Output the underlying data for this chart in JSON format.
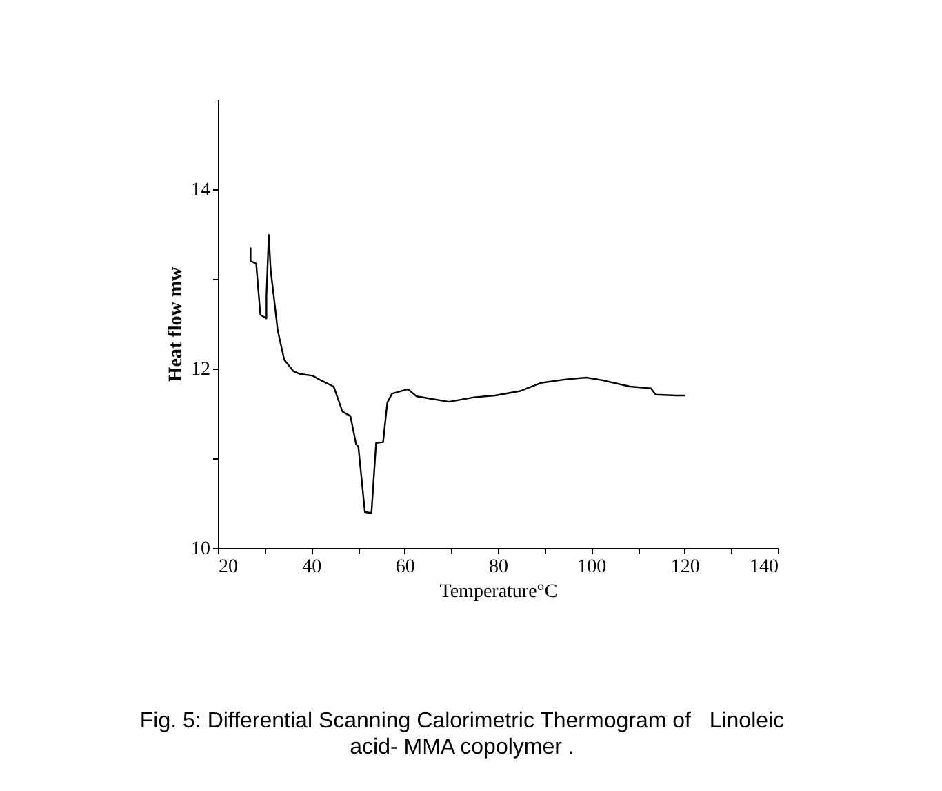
{
  "chart_data": {
    "type": "line",
    "xlabel": "Temperature°C",
    "ylabel": "Heat flow mw",
    "annotations": [
      "Fig. 5: Differential Scanning Calorimetric Thermogram of   Linoleic acid- MMA copolymer ."
    ],
    "xlim": [
      20,
      140
    ],
    "xticks": [
      20,
      {
        "value": 30,
        "label": null
      },
      40,
      {
        "value": 50,
        "label": null
      },
      60,
      {
        "value": 70,
        "label": null
      },
      80,
      {
        "value": 90,
        "label": null
      },
      100,
      {
        "value": 110,
        "label": null
      },
      120,
      {
        "value": 130,
        "label": null
      },
      140
    ],
    "ylim": [
      10,
      15
    ],
    "yticks": [
      10,
      {
        "value": 11,
        "label": null
      },
      12,
      {
        "value": 13,
        "label": null
      },
      14
    ],
    "grid": false,
    "legend": false,
    "series": [
      {
        "color": "#000000",
        "x": [
          27.0,
          27.0,
          28.2,
          29.1,
          30.4,
          30.4,
          30.9,
          31.3,
          32.3,
          32.8,
          34.2,
          36.2,
          37.6,
          40.3,
          42.4,
          44.8,
          46.7,
          48.4,
          49.6,
          50.1,
          51.5,
          52.9,
          53.9,
          55.4,
          56.3,
          57.3,
          60.7,
          62.6,
          69.5,
          74.9,
          79.4,
          84.8,
          89.2,
          94.6,
          99.0,
          102.4,
          108.3,
          112.8,
          113.8,
          118.2,
          120.1
        ],
        "values": [
          13.35,
          13.2,
          13.17,
          12.6,
          12.56,
          12.81,
          13.49,
          13.1,
          12.66,
          12.43,
          12.1,
          11.97,
          11.94,
          11.92,
          11.86,
          11.8,
          11.52,
          11.47,
          11.16,
          11.13,
          10.4,
          10.39,
          11.17,
          11.18,
          11.62,
          11.72,
          11.77,
          11.69,
          11.63,
          11.68,
          11.7,
          11.75,
          11.84,
          11.88,
          11.9,
          11.87,
          11.8,
          11.78,
          11.71,
          11.7,
          11.7
        ]
      }
    ]
  }
}
